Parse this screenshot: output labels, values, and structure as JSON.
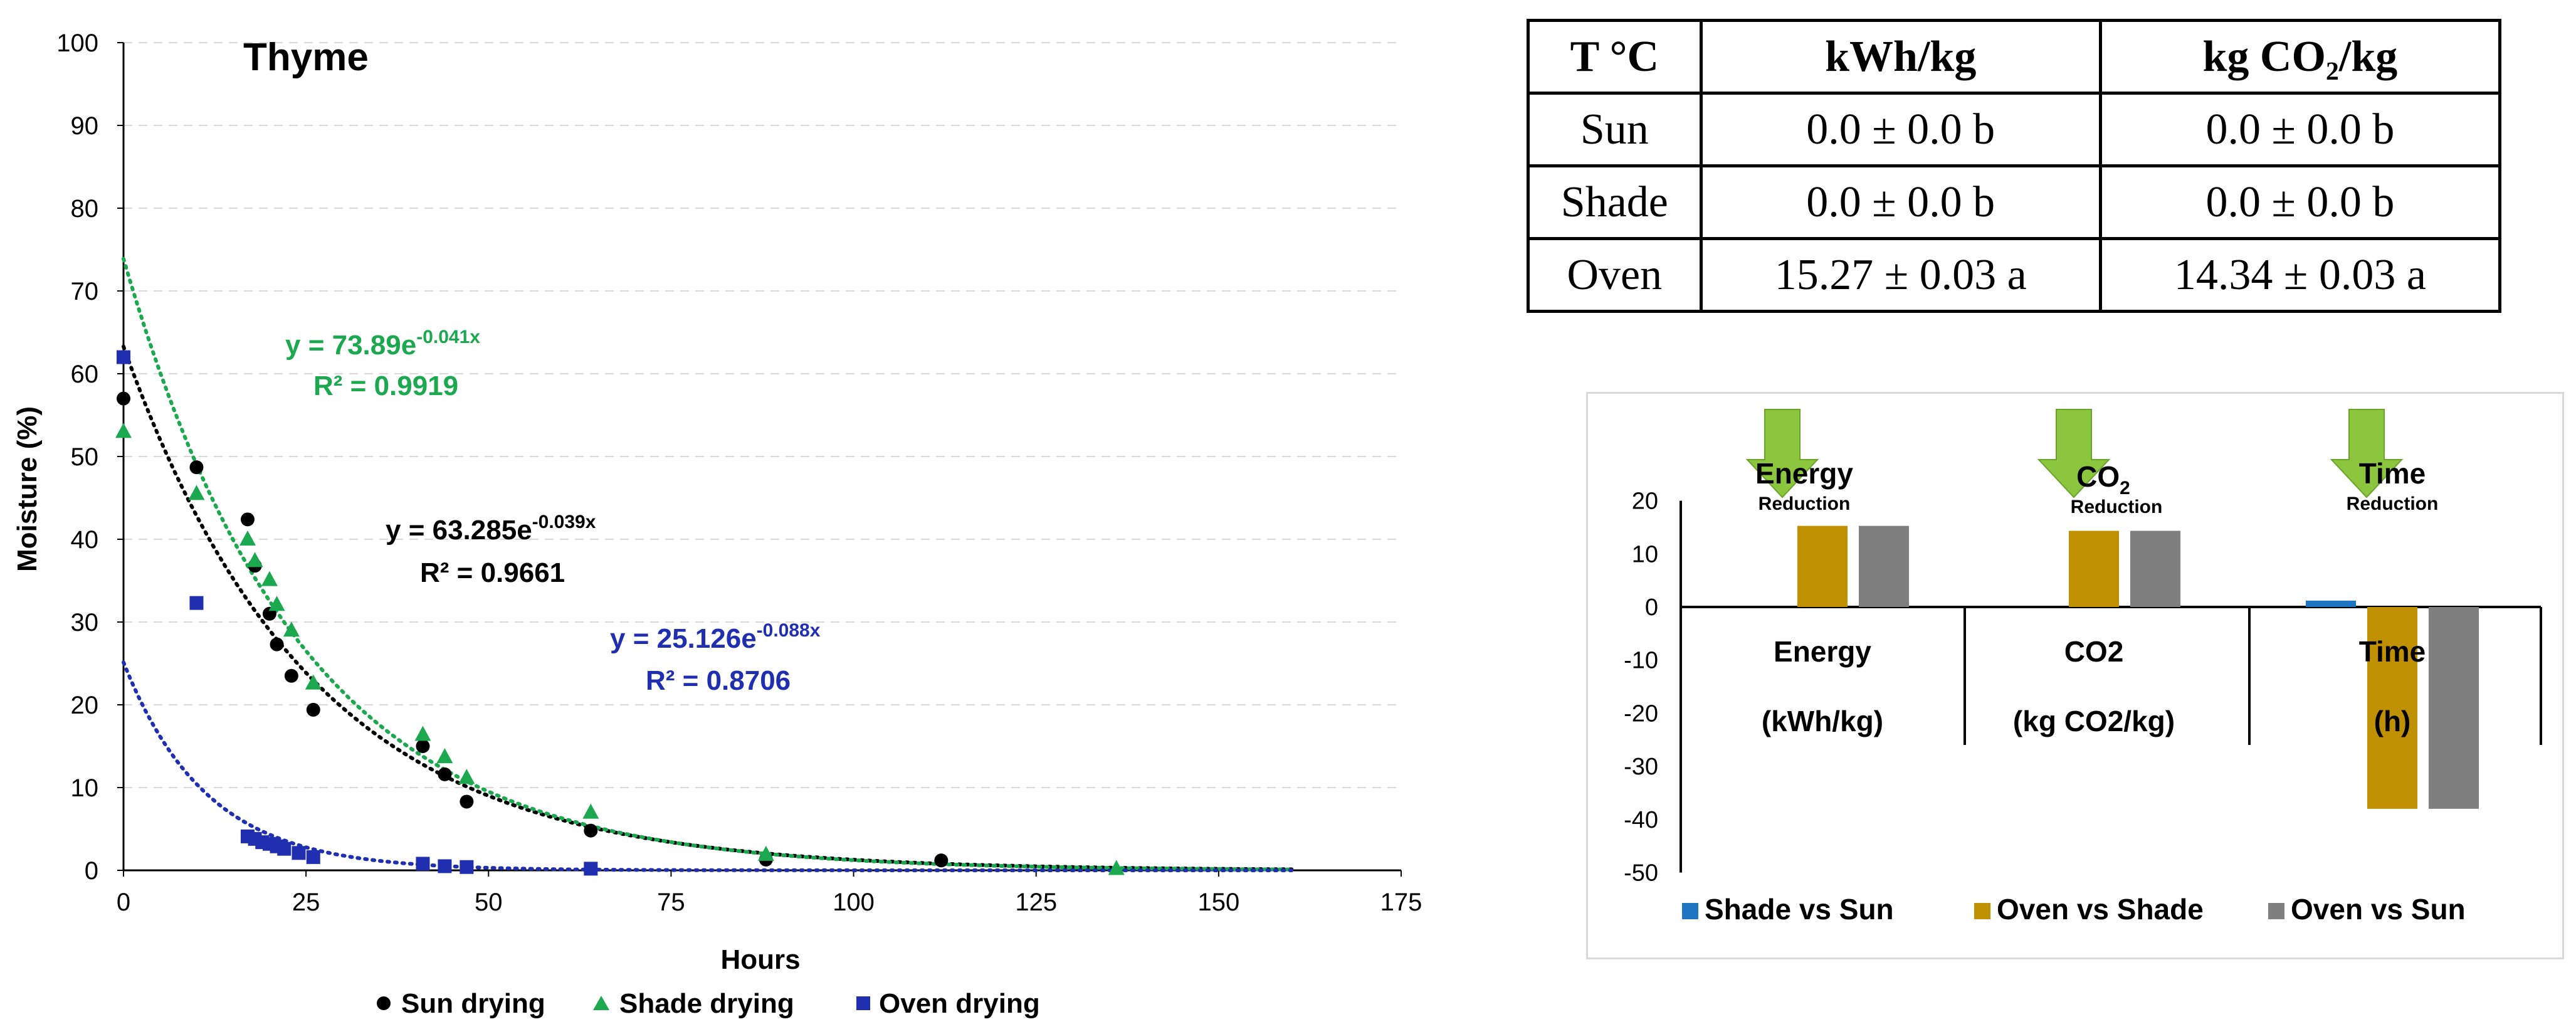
{
  "chart_data": [
    {
      "type": "scatter",
      "title": "Thyme",
      "xlabel": "Hours",
      "ylabel": "Moisture (%)",
      "xlim": [
        0,
        175
      ],
      "ylim": [
        0,
        100
      ],
      "xticks": [
        "0",
        "25",
        "50",
        "75",
        "100",
        "125",
        "150",
        "175"
      ],
      "yticks": [
        "0",
        "10",
        "20",
        "30",
        "40",
        "50",
        "60",
        "70",
        "80",
        "90",
        "100"
      ],
      "grid": true,
      "legend_position": "bottom",
      "series": [
        {
          "name": "Sun drying",
          "marker": "circle",
          "color": "#000000",
          "x": [
            0,
            10,
            17,
            18,
            20,
            21,
            23,
            26,
            41,
            44,
            47,
            64,
            88,
            112
          ],
          "y": [
            57,
            48.7,
            42.4,
            36.8,
            31,
            27.3,
            23.5,
            19.4,
            15,
            11.6,
            8.3,
            4.8,
            1.3,
            1.2
          ],
          "fit": {
            "a": 63.285,
            "b": 0.039,
            "xmax": 160,
            "equation": "y = 63.285e",
            "exponent": "-0.039x",
            "r2": "R² = 0.9661"
          }
        },
        {
          "name": "Shade drying",
          "marker": "triangle",
          "color": "#1ca84f",
          "x": [
            0,
            10,
            17,
            18,
            20,
            21,
            23,
            26,
            41,
            44,
            47,
            64,
            88,
            136
          ],
          "y": [
            53,
            45.5,
            40,
            37.4,
            35.1,
            32.1,
            29,
            22.6,
            16.4,
            13.7,
            11.2,
            7,
            1.9,
            0.2
          ],
          "fit": {
            "a": 73.89,
            "b": 0.041,
            "xmax": 160,
            "equation": "y = 73.89e",
            "exponent": "-0.041x",
            "r2": "R² = 0.9919"
          }
        },
        {
          "name": "Oven drying",
          "marker": "square",
          "color": "#1f2fb0",
          "x": [
            0,
            10,
            17,
            18,
            19,
            20,
            21,
            22,
            24,
            26,
            41,
            44,
            47,
            64
          ],
          "y": [
            62,
            32.3,
            4.1,
            3.8,
            3.4,
            3.2,
            2.9,
            2.6,
            2.1,
            1.6,
            0.8,
            0.5,
            0.4,
            0.2
          ],
          "fit": {
            "a": 25.126,
            "b": 0.088,
            "xmax": 160,
            "equation": "y = 25.126e",
            "exponent": "-0.088x",
            "r2": "R² = 0.8706"
          }
        }
      ]
    },
    {
      "type": "table",
      "columns": [
        "T °C",
        "kWh/kg",
        "kg CO₂/kg"
      ],
      "rows": [
        [
          "Sun",
          "0.0 ± 0.0 b",
          "0.0 ± 0.0 b"
        ],
        [
          "Shade",
          "0.0 ± 0.0 b",
          "0.0 ± 0.0 b"
        ],
        [
          "Oven",
          "15.27 ± 0.03 a",
          "14.34 ± 0.03 a"
        ]
      ]
    },
    {
      "type": "bar",
      "categories": [
        {
          "name": "Energy",
          "unit": "(kWh/kg)",
          "arrow_label": "Energy",
          "arrow_sub": "Reduction"
        },
        {
          "name": "CO2",
          "unit": "(kg CO2/kg)",
          "arrow_label": "CO",
          "arrow_label_sub": "2",
          "arrow_sub": "Reduction"
        },
        {
          "name": "Time",
          "unit": "(h)",
          "arrow_label": "Time",
          "arrow_sub": "Reduction"
        }
      ],
      "series": [
        {
          "name": "Shade vs Sun",
          "color": "#1f77c4",
          "values": [
            0,
            0,
            1.2
          ]
        },
        {
          "name": "Oven vs Shade",
          "color": "#bf9000",
          "values": [
            15.27,
            14.34,
            -38
          ]
        },
        {
          "name": "Oven vs Sun",
          "color": "#7f7f7f",
          "values": [
            15.27,
            14.34,
            -38
          ]
        }
      ],
      "ylim": [
        -50,
        20
      ],
      "yticks": [
        "20",
        "10",
        "0",
        "-10",
        "-20",
        "-30",
        "-40",
        "-50"
      ],
      "grid": false,
      "legend_position": "bottom"
    }
  ]
}
